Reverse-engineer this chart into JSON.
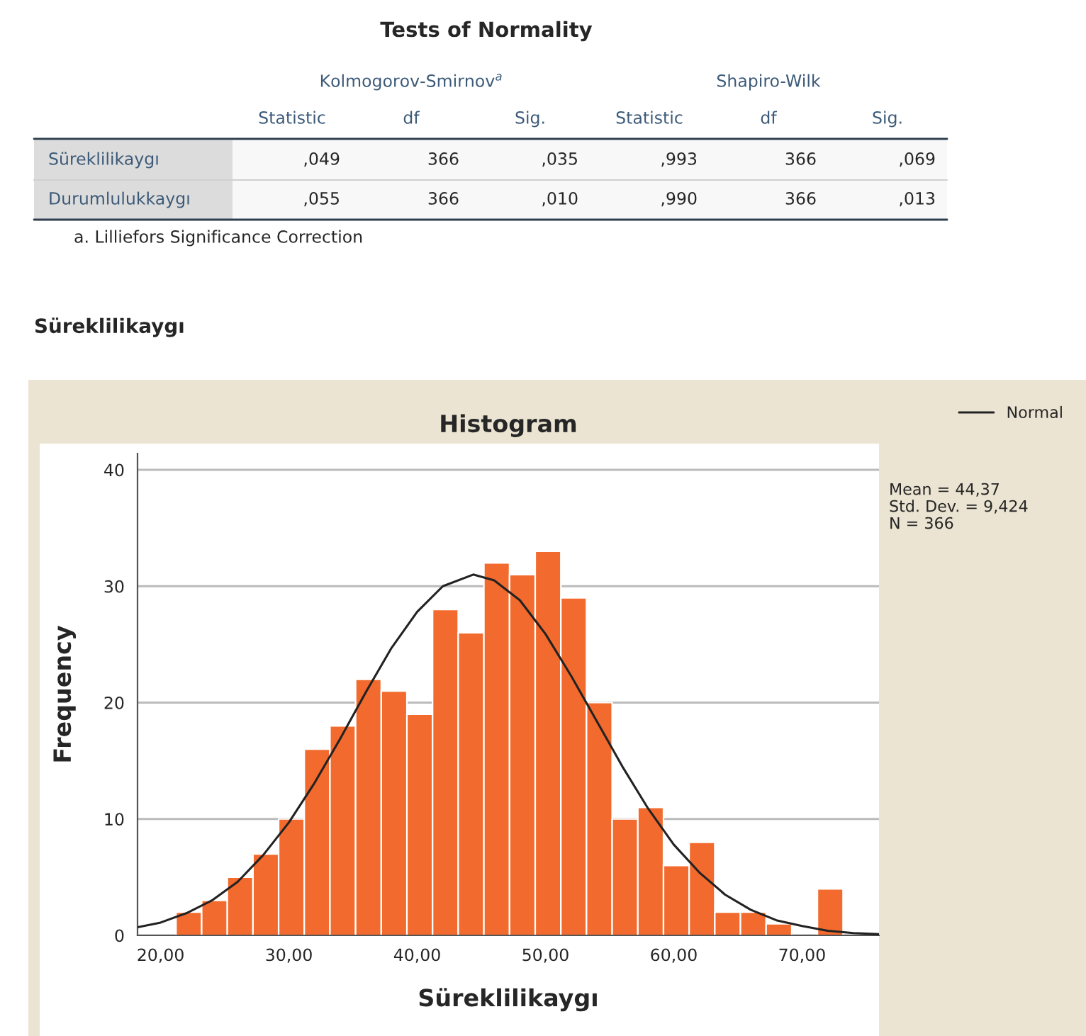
{
  "chart_data": [
    {
      "type": "other",
      "title": "Tests of Normality",
      "categories": [
        "Statistic",
        "df",
        "Sig.",
        "Statistic",
        "df",
        "Sig."
      ],
      "y_categories": [
        "Süreklilikaygı",
        "Durumlulukkaygı"
      ],
      "cell_labels": [
        [
          ",049",
          "366",
          ",035",
          ",993",
          "366",
          ",069"
        ],
        [
          ",055",
          "366",
          ",010",
          ",990",
          "366",
          ",013"
        ]
      ],
      "annotations": [
        "Kolmogorov-Smirnov$^{a}$",
        "Shapiro-Wilk",
        "a. Lilliefors Significance Correction"
      ]
    },
    {
      "type": "histogram",
      "title": "Histogram",
      "subtitle": "Süreklilikaygı",
      "xlabel": "Süreklilikaygı",
      "ylabel": "Frequency",
      "bins": [
        21.2,
        23.2,
        25.2,
        27.2,
        29.2,
        31.2,
        33.2,
        35.2,
        37.2,
        39.2,
        41.2,
        43.2,
        45.2,
        47.2,
        49.2,
        51.2,
        53.2,
        55.2,
        57.2,
        59.2,
        61.2,
        63.2,
        65.2,
        67.2,
        69.2,
        71.2,
        73.2
      ],
      "values": [
        2,
        3,
        5,
        7,
        10,
        16,
        18,
        22,
        21,
        19,
        28,
        26,
        32,
        31,
        33,
        29,
        20,
        10,
        11,
        6,
        8,
        2,
        2,
        1,
        0,
        4
      ],
      "color": "#f26a2d",
      "series": [
        {
          "type": "line",
          "name": "Normal",
          "color": "#222222",
          "x": [
            18.2,
            20,
            22,
            24,
            26,
            28,
            30,
            32,
            34,
            36,
            38,
            40,
            42,
            44.37,
            46,
            48,
            50,
            52,
            54,
            56,
            58,
            60,
            62,
            64,
            66,
            68,
            70,
            72,
            74,
            76
          ],
          "values": [
            0.7,
            1.1,
            1.9,
            3.0,
            4.6,
            6.9,
            9.7,
            13.1,
            16.9,
            20.9,
            24.7,
            27.8,
            30.0,
            31.0,
            30.5,
            28.8,
            25.9,
            22.3,
            18.4,
            14.5,
            10.9,
            7.8,
            5.4,
            3.5,
            2.2,
            1.3,
            0.8,
            0.4,
            0.2,
            0.1
          ]
        }
      ],
      "xlim": [
        18.2,
        76
      ],
      "xticks": [
        {
          "value": 20,
          "label": "20,00"
        },
        {
          "value": 30,
          "label": "30,00"
        },
        {
          "value": 40,
          "label": "40,00"
        },
        {
          "value": 50,
          "label": "50,00"
        },
        {
          "value": 60,
          "label": "60,00"
        },
        {
          "value": 70,
          "label": "70,00"
        }
      ],
      "ylim": [
        0,
        41.4
      ],
      "yticks": [
        0,
        10,
        20,
        30,
        40
      ],
      "grid": "y",
      "legend": "top right",
      "annotations": [
        "Mean = 44,37",
        "Std. Dev. = 9,424",
        "N = 366"
      ]
    }
  ]
}
